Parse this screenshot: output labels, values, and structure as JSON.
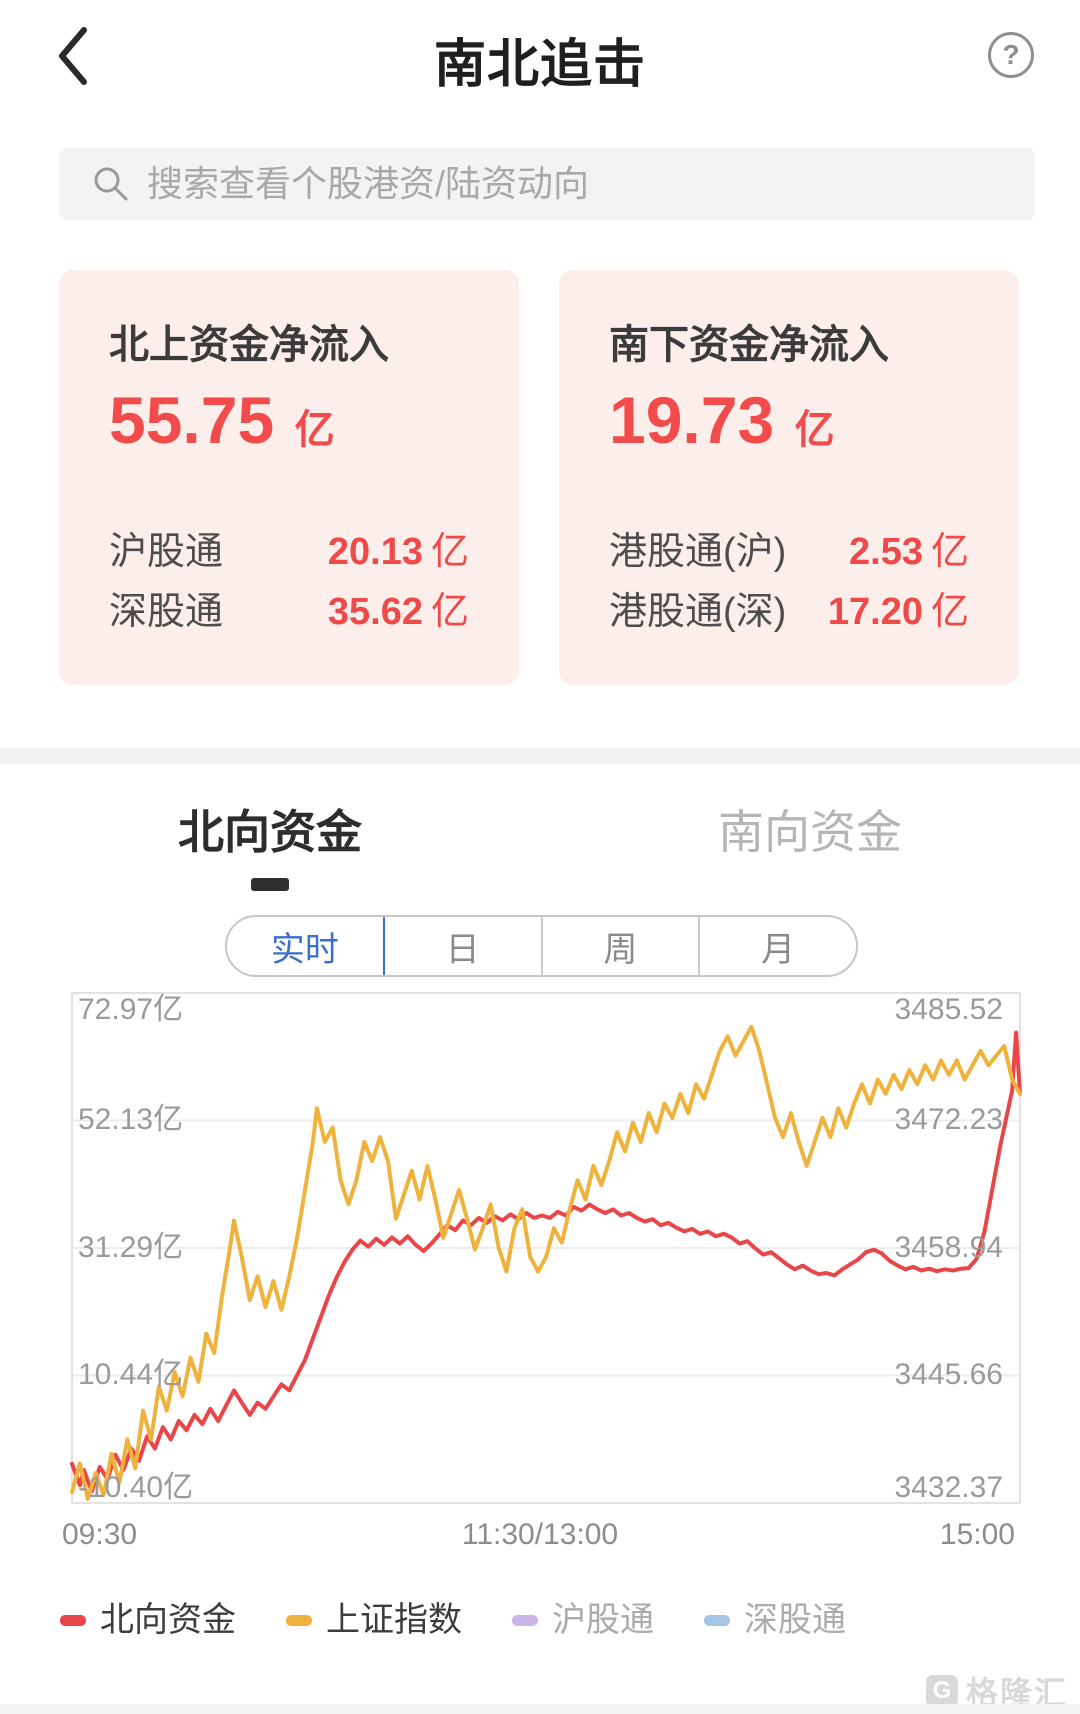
{
  "header": {
    "title": "南北追击",
    "back": "‹",
    "help": "?"
  },
  "search": {
    "placeholder": "搜索查看个股港资/陆资动向"
  },
  "cards": {
    "north": {
      "title": "北上资金净流入",
      "value": "55.75",
      "unit": "亿",
      "rows": [
        {
          "label": "沪股通",
          "value": "20.13",
          "unit": "亿"
        },
        {
          "label": "深股通",
          "value": "35.62",
          "unit": "亿"
        }
      ]
    },
    "south": {
      "title": "南下资金净流入",
      "value": "19.73",
      "unit": "亿",
      "rows": [
        {
          "label": "港股通(沪)",
          "value": "2.53",
          "unit": "亿"
        },
        {
          "label": "港股通(深)",
          "value": "17.20",
          "unit": "亿"
        }
      ]
    }
  },
  "tabs": {
    "items": [
      {
        "label": "北向资金",
        "active": true
      },
      {
        "label": "南向资金",
        "active": false
      }
    ]
  },
  "periods": {
    "items": [
      {
        "label": "实时",
        "active": true
      },
      {
        "label": "日",
        "active": false
      },
      {
        "label": "周",
        "active": false
      },
      {
        "label": "月",
        "active": false
      }
    ]
  },
  "colors": {
    "accent_blue": "#3a6fce",
    "flow_red": "#f24b4b",
    "card_bg": "#fceeea"
  },
  "chart_data": {
    "type": "line",
    "x_axis": {
      "labels": [
        "09:30",
        "11:30/13:00",
        "15:00"
      ],
      "range_minutes": [
        0,
        240
      ]
    },
    "left_axis": {
      "unit": "亿",
      "ticks": [
        "72.97亿",
        "52.13亿",
        "31.29亿",
        "10.44亿",
        "-10.40亿"
      ],
      "values": [
        72.97,
        52.13,
        31.29,
        10.44,
        -10.4
      ]
    },
    "right_axis": {
      "ticks": [
        "3485.52",
        "3472.23",
        "3458.94",
        "3445.66",
        "3432.37"
      ],
      "values": [
        3485.52,
        3472.23,
        3458.94,
        3445.66,
        3432.37
      ]
    },
    "grid": true,
    "legend_position": "bottom",
    "series": [
      {
        "name": "北向资金",
        "color": "#e9464a",
        "axis": "left",
        "points": [
          [
            0,
            -4
          ],
          [
            2,
            -7.5
          ],
          [
            3,
            -5
          ],
          [
            5,
            -8.5
          ],
          [
            7,
            -4.5
          ],
          [
            9,
            -6.5
          ],
          [
            11,
            -2.5
          ],
          [
            13,
            -5
          ],
          [
            15,
            -1.5
          ],
          [
            17,
            -3.5
          ],
          [
            19,
            0.5
          ],
          [
            21,
            -1.5
          ],
          [
            23,
            2
          ],
          [
            25,
            0
          ],
          [
            27,
            3
          ],
          [
            29,
            1.5
          ],
          [
            31,
            4
          ],
          [
            33,
            2.5
          ],
          [
            35,
            5
          ],
          [
            37,
            3
          ],
          [
            39,
            5.5
          ],
          [
            41,
            8
          ],
          [
            43,
            6
          ],
          [
            45,
            4
          ],
          [
            47,
            6
          ],
          [
            49,
            5
          ],
          [
            51,
            7
          ],
          [
            53,
            9
          ],
          [
            55,
            8
          ],
          [
            57,
            10.5
          ],
          [
            59,
            13
          ],
          [
            61,
            16.5
          ],
          [
            63,
            20
          ],
          [
            65,
            23.5
          ],
          [
            67,
            26.5
          ],
          [
            69,
            29
          ],
          [
            71,
            31
          ],
          [
            73,
            32.5
          ],
          [
            75,
            31.5
          ],
          [
            77,
            32.8
          ],
          [
            79,
            31.8
          ],
          [
            81,
            33
          ],
          [
            83,
            32
          ],
          [
            85,
            33.2
          ],
          [
            87,
            31.8
          ],
          [
            89,
            30.8
          ],
          [
            91,
            32
          ],
          [
            93,
            33.5
          ],
          [
            95,
            35
          ],
          [
            97,
            34.2
          ],
          [
            99,
            35.8
          ],
          [
            101,
            35
          ],
          [
            103,
            36.2
          ],
          [
            105,
            35.4
          ],
          [
            107,
            36.5
          ],
          [
            109,
            35.8
          ],
          [
            111,
            36.8
          ],
          [
            113,
            36
          ],
          [
            115,
            37
          ],
          [
            117,
            36.2
          ],
          [
            119,
            36.6
          ],
          [
            121,
            36.2
          ],
          [
            123,
            37.2
          ],
          [
            125,
            36.6
          ],
          [
            127,
            38
          ],
          [
            129,
            37.4
          ],
          [
            131,
            38.4
          ],
          [
            133,
            37.6
          ],
          [
            135,
            37
          ],
          [
            137,
            37.6
          ],
          [
            139,
            36.6
          ],
          [
            141,
            37
          ],
          [
            143,
            36.2
          ],
          [
            145,
            35.6
          ],
          [
            147,
            36
          ],
          [
            149,
            35
          ],
          [
            151,
            35.4
          ],
          [
            153,
            34.6
          ],
          [
            155,
            34
          ],
          [
            157,
            34.4
          ],
          [
            159,
            33.6
          ],
          [
            161,
            34
          ],
          [
            163,
            33.2
          ],
          [
            165,
            33.6
          ],
          [
            167,
            33
          ],
          [
            169,
            32
          ],
          [
            171,
            32.4
          ],
          [
            173,
            31.2
          ],
          [
            175,
            30.2
          ],
          [
            177,
            30.6
          ],
          [
            179,
            29.6
          ],
          [
            181,
            28.6
          ],
          [
            183,
            27.8
          ],
          [
            185,
            28.4
          ],
          [
            187,
            27.6
          ],
          [
            189,
            27
          ],
          [
            191,
            27.2
          ],
          [
            193,
            26.8
          ],
          [
            195,
            27.8
          ],
          [
            197,
            28.6
          ],
          [
            199,
            29.4
          ],
          [
            201,
            30.6
          ],
          [
            203,
            31
          ],
          [
            205,
            30.4
          ],
          [
            207,
            29.2
          ],
          [
            209,
            28.4
          ],
          [
            211,
            27.8
          ],
          [
            213,
            28.2
          ],
          [
            215,
            27.6
          ],
          [
            217,
            27.9
          ],
          [
            219,
            27.5
          ],
          [
            221,
            27.8
          ],
          [
            223,
            27.6
          ],
          [
            225,
            27.9
          ],
          [
            227,
            28
          ],
          [
            229,
            29.5
          ],
          [
            231,
            34
          ],
          [
            233,
            41
          ],
          [
            235,
            48
          ],
          [
            237,
            54
          ],
          [
            238,
            57
          ],
          [
            239,
            66.5
          ],
          [
            240,
            56.5
          ]
        ]
      },
      {
        "name": "上证指数",
        "color": "#efb33d",
        "axis": "right",
        "points": [
          [
            0,
            3433.5
          ],
          [
            2,
            3436.5
          ],
          [
            4,
            3432.8
          ],
          [
            6,
            3435.5
          ],
          [
            8,
            3433.2
          ],
          [
            10,
            3437.5
          ],
          [
            12,
            3434.5
          ],
          [
            14,
            3439
          ],
          [
            16,
            3436
          ],
          [
            18,
            3442
          ],
          [
            20,
            3439
          ],
          [
            22,
            3444.5
          ],
          [
            24,
            3442
          ],
          [
            26,
            3446
          ],
          [
            28,
            3443.5
          ],
          [
            30,
            3447.5
          ],
          [
            32,
            3445
          ],
          [
            34,
            3450
          ],
          [
            36,
            3448
          ],
          [
            38,
            3454
          ],
          [
            40,
            3459
          ],
          [
            41,
            3461.8
          ],
          [
            43,
            3458
          ],
          [
            45,
            3453.5
          ],
          [
            47,
            3456
          ],
          [
            49,
            3452.8
          ],
          [
            51,
            3455.5
          ],
          [
            53,
            3452.5
          ],
          [
            55,
            3456
          ],
          [
            57,
            3460
          ],
          [
            59,
            3465
          ],
          [
            61,
            3470
          ],
          [
            62,
            3473.5
          ],
          [
            64,
            3470
          ],
          [
            66,
            3471.5
          ],
          [
            68,
            3466
          ],
          [
            70,
            3463.5
          ],
          [
            72,
            3466
          ],
          [
            74,
            3470
          ],
          [
            76,
            3468
          ],
          [
            78,
            3470.5
          ],
          [
            80,
            3468
          ],
          [
            82,
            3462
          ],
          [
            84,
            3464.5
          ],
          [
            86,
            3467
          ],
          [
            88,
            3464
          ],
          [
            90,
            3467.5
          ],
          [
            92,
            3464
          ],
          [
            94,
            3460
          ],
          [
            96,
            3462.5
          ],
          [
            98,
            3465
          ],
          [
            100,
            3462
          ],
          [
            102,
            3458.8
          ],
          [
            104,
            3461
          ],
          [
            106,
            3463.5
          ],
          [
            108,
            3459
          ],
          [
            110,
            3456.5
          ],
          [
            112,
            3461
          ],
          [
            114,
            3463
          ],
          [
            116,
            3458
          ],
          [
            118,
            3456.5
          ],
          [
            120,
            3458
          ],
          [
            122,
            3461
          ],
          [
            124,
            3459.5
          ],
          [
            126,
            3463
          ],
          [
            128,
            3466
          ],
          [
            130,
            3464
          ],
          [
            132,
            3467.5
          ],
          [
            134,
            3465.5
          ],
          [
            136,
            3468
          ],
          [
            138,
            3471
          ],
          [
            140,
            3469
          ],
          [
            142,
            3472
          ],
          [
            144,
            3470
          ],
          [
            146,
            3473
          ],
          [
            148,
            3471
          ],
          [
            150,
            3474
          ],
          [
            152,
            3472.5
          ],
          [
            154,
            3475
          ],
          [
            156,
            3473
          ],
          [
            158,
            3476
          ],
          [
            160,
            3474.5
          ],
          [
            162,
            3477
          ],
          [
            164,
            3479.5
          ],
          [
            166,
            3481
          ],
          [
            168,
            3479
          ],
          [
            170,
            3480.5
          ],
          [
            172,
            3482
          ],
          [
            174,
            3479.5
          ],
          [
            176,
            3476
          ],
          [
            178,
            3472.5
          ],
          [
            180,
            3470.5
          ],
          [
            182,
            3473
          ],
          [
            184,
            3470
          ],
          [
            186,
            3467.5
          ],
          [
            188,
            3470
          ],
          [
            190,
            3472.5
          ],
          [
            192,
            3470.5
          ],
          [
            194,
            3473.5
          ],
          [
            196,
            3471.5
          ],
          [
            198,
            3474
          ],
          [
            200,
            3476
          ],
          [
            202,
            3474
          ],
          [
            204,
            3476.5
          ],
          [
            206,
            3475
          ],
          [
            208,
            3477
          ],
          [
            210,
            3475.5
          ],
          [
            212,
            3477.5
          ],
          [
            214,
            3476
          ],
          [
            216,
            3478
          ],
          [
            218,
            3476.5
          ],
          [
            220,
            3478.5
          ],
          [
            222,
            3477
          ],
          [
            224,
            3478.5
          ],
          [
            226,
            3476.5
          ],
          [
            228,
            3478
          ],
          [
            230,
            3479.5
          ],
          [
            232,
            3478
          ],
          [
            234,
            3479
          ],
          [
            236,
            3480
          ],
          [
            238,
            3476.5
          ],
          [
            240,
            3475
          ]
        ]
      }
    ],
    "legend": [
      {
        "label": "北向资金",
        "color": "#e9464a",
        "active": true
      },
      {
        "label": "上证指数",
        "color": "#efb33d",
        "active": true
      },
      {
        "label": "沪股通",
        "color": "#cbb5e8",
        "active": false
      },
      {
        "label": "深股通",
        "color": "#a3c6e8",
        "active": false
      }
    ]
  },
  "watermark": {
    "logo": "G",
    "text": "格隆汇"
  }
}
